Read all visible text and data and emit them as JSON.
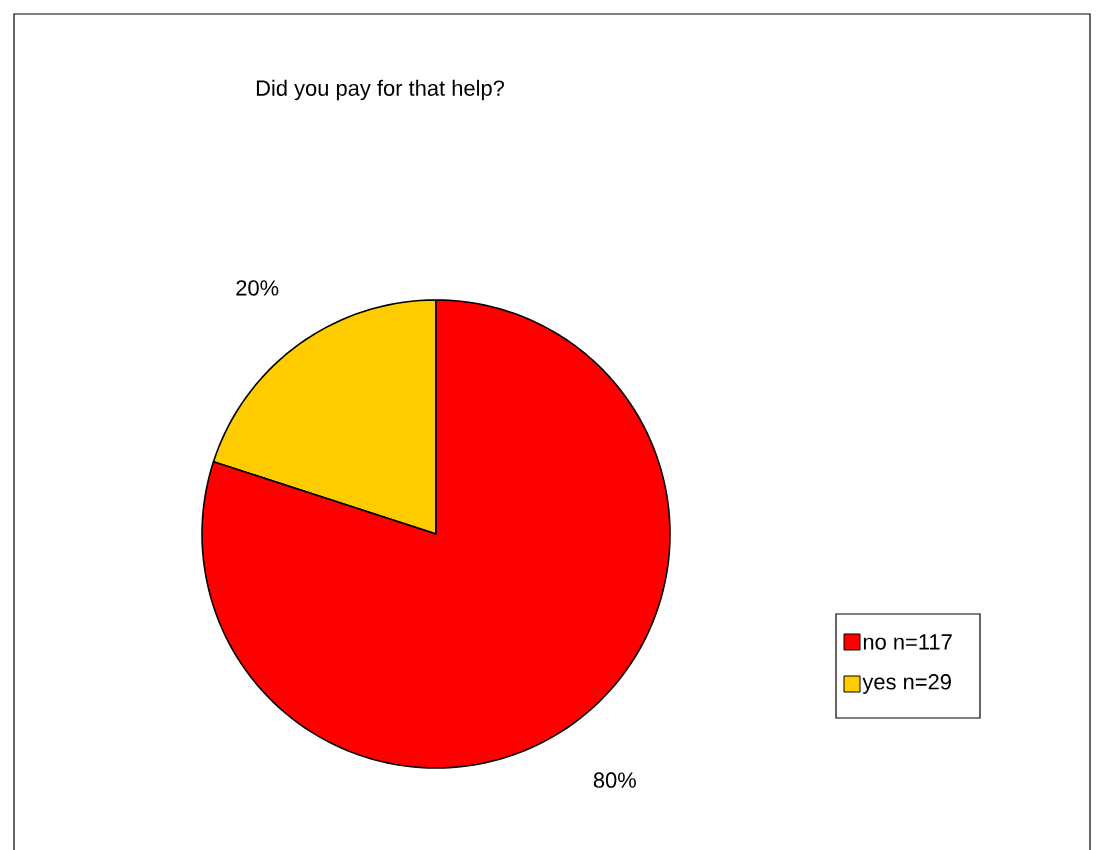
{
  "chart_data": {
    "type": "pie",
    "title": "Did you pay for that help?",
    "categories": [
      "no  n=117",
      "yes   n=29"
    ],
    "values": [
      80,
      20
    ],
    "colors": [
      "#ff0000",
      "#ffcc00"
    ],
    "value_labels": [
      "80%",
      "20%"
    ],
    "legend": "right"
  }
}
